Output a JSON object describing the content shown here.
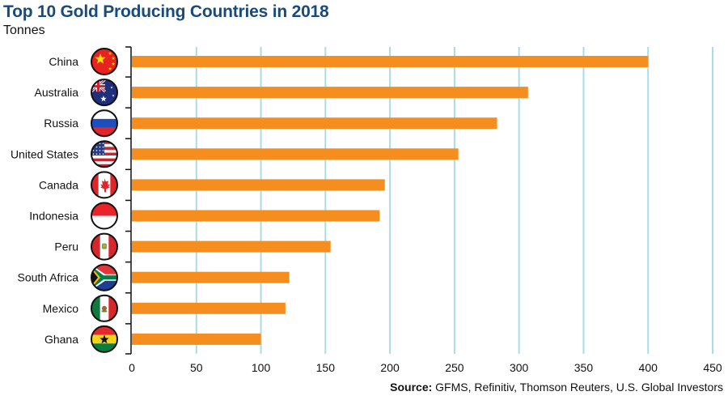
{
  "chart_data": {
    "type": "bar",
    "orientation": "horizontal",
    "title": "Top 10 Gold Producing Countries in 2018",
    "subtitle": "Tonnes",
    "xlabel": "",
    "ylabel": "",
    "categories": [
      "China",
      "Australia",
      "Russia",
      "United States",
      "Canada",
      "Indonesia",
      "Peru",
      "South Africa",
      "Mexico",
      "Ghana"
    ],
    "values": [
      400,
      307,
      283,
      253,
      196,
      192,
      154,
      122,
      119,
      100
    ],
    "flags": [
      "china-flag",
      "australia-flag",
      "russia-flag",
      "united-states-flag",
      "canada-flag",
      "indonesia-flag",
      "peru-flag",
      "south-africa-flag",
      "mexico-flag",
      "ghana-flag"
    ],
    "xlim": [
      0,
      450
    ],
    "xticks": [
      0,
      50,
      100,
      150,
      200,
      250,
      300,
      350,
      400,
      450
    ],
    "grid": "vertical",
    "legend": "none",
    "colors": {
      "bar": "#f68d1f",
      "grid": "#a9dde6",
      "title": "#1a4a7a",
      "axis": "#111111"
    }
  },
  "source": {
    "label": "Source:",
    "text": " GFMS, Refinitiv, Thomson Reuters, U.S. Global Investors"
  }
}
